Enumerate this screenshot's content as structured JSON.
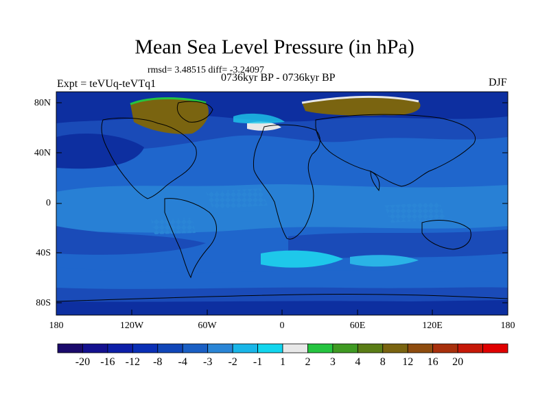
{
  "title": "Mean Sea Level Pressure (in hPa)",
  "stats": "rmsd= 3.48515 diff= -3.24097",
  "left_label": "Expt = teVUq-teVTq1",
  "center_label": "0736kyr BP - 0736kyr BP",
  "right_label": "DJF",
  "lat_ticks": [
    "80N",
    "40N",
    "0",
    "40S",
    "80S"
  ],
  "lon_ticks": [
    "180",
    "120W",
    "60W",
    "0",
    "60E",
    "120E",
    "180"
  ],
  "colorbar": {
    "labels": [
      "-20",
      "-16",
      "-12",
      "-8",
      "-4",
      "-3",
      "-2",
      "-1",
      "1",
      "2",
      "3",
      "4",
      "8",
      "12",
      "16",
      "20"
    ],
    "colors": [
      "#1a0a6b",
      "#14118f",
      "#0d1fa8",
      "#0a2fb5",
      "#1046b8",
      "#1a5fc4",
      "#2a85d6",
      "#19b6e8",
      "#12d6ee",
      "#e8e8e8",
      "#25c440",
      "#3f9a22",
      "#5a7d16",
      "#7a6410",
      "#8e4c0e",
      "#a8300c",
      "#c61808",
      "#e00000"
    ]
  },
  "colors": {
    "ocean_base": "#1f5fc8",
    "deep": "#0d2fa0",
    "medium": "#1a4bb8",
    "light": "#2a85d6",
    "cyan": "#1ec8ea",
    "land_high": "#7a6410",
    "coast": "#000000"
  }
}
